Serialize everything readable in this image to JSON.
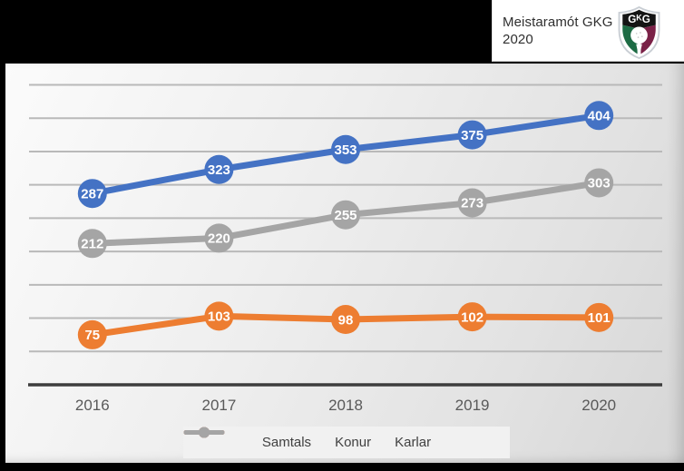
{
  "header": {
    "title_line1": "Meistaramót GKG",
    "title_line2": "2020",
    "logo": {
      "text": "GKG",
      "colors": {
        "green": "#1d6b44",
        "maroon": "#7a2147",
        "black": "#141414",
        "silver": "#c9ced4"
      }
    }
  },
  "chart_data": {
    "type": "line",
    "title": "",
    "categories": [
      "2016",
      "2017",
      "2018",
      "2019",
      "2020"
    ],
    "series": [
      {
        "name": "Samtals",
        "color": "#4472C4",
        "values": [
          287,
          323,
          353,
          375,
          404
        ]
      },
      {
        "name": "Konur",
        "color": "#ED7D31",
        "values": [
          75,
          103,
          98,
          102,
          101
        ]
      },
      {
        "name": "Karlar",
        "color": "#A5A5A5",
        "values": [
          212,
          220,
          255,
          273,
          303
        ]
      }
    ],
    "xlabel": "",
    "ylabel": "",
    "ylim": [
      0,
      450
    ],
    "gridline_step": 50,
    "grid": true,
    "data_labels": true,
    "legend_position": "bottom",
    "colors": {
      "gridline": "#b9b9b9",
      "axis_line": "#3d3d3d",
      "tick_label": "#595959",
      "data_label_text": "#ffffff"
    }
  }
}
